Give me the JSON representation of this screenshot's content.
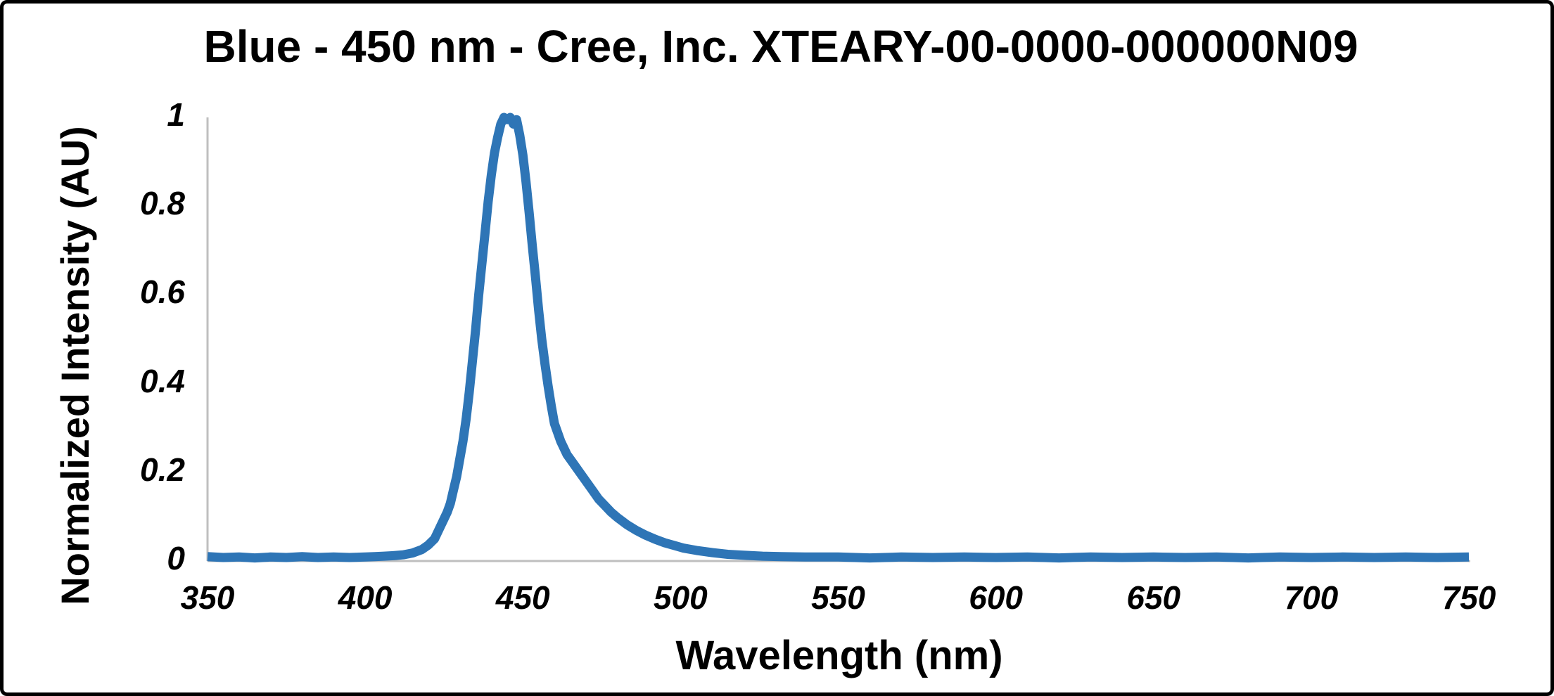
{
  "chart_data": {
    "type": "line",
    "title": "Blue - 450 nm - Cree, Inc. XTEARY-00-0000-000000N09",
    "xlabel": "Wavelength (nm)",
    "ylabel": "Normalized Intensity (AU)",
    "xlim": [
      350,
      750
    ],
    "ylim": [
      0,
      1
    ],
    "x_ticks": [
      "350",
      "400",
      "450",
      "500",
      "550",
      "600",
      "650",
      "700",
      "750"
    ],
    "y_ticks": [
      "0",
      "0.2",
      "0.4",
      "0.6",
      "0.8",
      "1"
    ],
    "grid": false,
    "legend": "none",
    "line_color": "#2E75B6",
    "axis_color": "#BFBFBF",
    "peak_wavelength_nm": 446,
    "points": [
      [
        350,
        0.01
      ],
      [
        355,
        0.008
      ],
      [
        360,
        0.009
      ],
      [
        365,
        0.007
      ],
      [
        370,
        0.009
      ],
      [
        375,
        0.008
      ],
      [
        380,
        0.01
      ],
      [
        385,
        0.008
      ],
      [
        390,
        0.009
      ],
      [
        395,
        0.008
      ],
      [
        400,
        0.009
      ],
      [
        403,
        0.01
      ],
      [
        406,
        0.011
      ],
      [
        409,
        0.012
      ],
      [
        412,
        0.014
      ],
      [
        415,
        0.018
      ],
      [
        418,
        0.026
      ],
      [
        420,
        0.036
      ],
      [
        422,
        0.05
      ],
      [
        424,
        0.08
      ],
      [
        426,
        0.11
      ],
      [
        427,
        0.13
      ],
      [
        428,
        0.16
      ],
      [
        429,
        0.19
      ],
      [
        430,
        0.23
      ],
      [
        431,
        0.27
      ],
      [
        432,
        0.32
      ],
      [
        433,
        0.38
      ],
      [
        434,
        0.45
      ],
      [
        435,
        0.52
      ],
      [
        436,
        0.6
      ],
      [
        437,
        0.67
      ],
      [
        438,
        0.74
      ],
      [
        439,
        0.81
      ],
      [
        440,
        0.87
      ],
      [
        441,
        0.92
      ],
      [
        442,
        0.955
      ],
      [
        443,
        0.985
      ],
      [
        444,
        1.0
      ],
      [
        445,
        0.995
      ],
      [
        446,
        1.0
      ],
      [
        447,
        0.985
      ],
      [
        448,
        0.995
      ],
      [
        449,
        0.96
      ],
      [
        450,
        0.915
      ],
      [
        451,
        0.855
      ],
      [
        452,
        0.785
      ],
      [
        453,
        0.71
      ],
      [
        454,
        0.64
      ],
      [
        455,
        0.565
      ],
      [
        456,
        0.5
      ],
      [
        457,
        0.445
      ],
      [
        458,
        0.395
      ],
      [
        459,
        0.35
      ],
      [
        460,
        0.31
      ],
      [
        462,
        0.27
      ],
      [
        464,
        0.24
      ],
      [
        466,
        0.22
      ],
      [
        468,
        0.2
      ],
      [
        470,
        0.18
      ],
      [
        472,
        0.16
      ],
      [
        474,
        0.14
      ],
      [
        476,
        0.125
      ],
      [
        478,
        0.11
      ],
      [
        480,
        0.098
      ],
      [
        483,
        0.082
      ],
      [
        486,
        0.069
      ],
      [
        489,
        0.058
      ],
      [
        492,
        0.049
      ],
      [
        495,
        0.041
      ],
      [
        498,
        0.035
      ],
      [
        501,
        0.029
      ],
      [
        505,
        0.024
      ],
      [
        510,
        0.019
      ],
      [
        515,
        0.015
      ],
      [
        520,
        0.013
      ],
      [
        526,
        0.011
      ],
      [
        532,
        0.01
      ],
      [
        540,
        0.009
      ],
      [
        550,
        0.009
      ],
      [
        560,
        0.007
      ],
      [
        570,
        0.009
      ],
      [
        580,
        0.008
      ],
      [
        590,
        0.009
      ],
      [
        600,
        0.008
      ],
      [
        610,
        0.009
      ],
      [
        620,
        0.007
      ],
      [
        630,
        0.009
      ],
      [
        640,
        0.008
      ],
      [
        650,
        0.009
      ],
      [
        660,
        0.008
      ],
      [
        670,
        0.009
      ],
      [
        680,
        0.007
      ],
      [
        690,
        0.009
      ],
      [
        700,
        0.008
      ],
      [
        710,
        0.009
      ],
      [
        720,
        0.008
      ],
      [
        730,
        0.009
      ],
      [
        740,
        0.008
      ],
      [
        750,
        0.009
      ]
    ]
  },
  "frame": {
    "background": "#FFFFFF",
    "border_color": "#000000"
  }
}
